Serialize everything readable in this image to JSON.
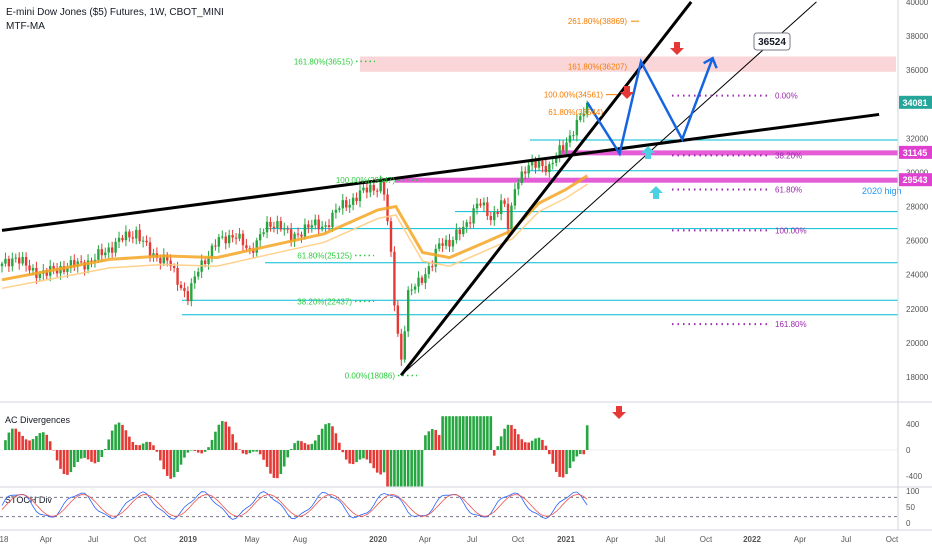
{
  "header": {
    "title": "E-mini Dow Jones ($5) Futures, 1W, CBOT_MINI",
    "indicator": "MTF-MA"
  },
  "panes": {
    "ac_title": "AC Divergences",
    "stoch_title": "STOCH Div"
  },
  "colors": {
    "up": "#26a641",
    "down": "#e53935",
    "ma_orange": "#f5a623",
    "trend_black": "#000000",
    "forecast_blue": "#1565e0",
    "fib_green": "#2ecc40",
    "fib_orange": "#f57c00",
    "fib_purple": "#9c27b0",
    "cyan": "#00bcd4",
    "magenta": "#e040d0",
    "pink_zone": "#f8c8cc"
  },
  "chart_data": [
    {
      "type": "line",
      "title": "E-mini Dow Jones ($5) Futures, 1W, CBOT_MINI",
      "ylim": [
        16000,
        40000
      ],
      "yticks": [
        18000,
        20000,
        22000,
        24000,
        26000,
        28000,
        30000,
        32000,
        34000,
        36000,
        38000,
        40000
      ],
      "x_axis_labels": [
        "18",
        "Apr",
        "Jul",
        "Oct",
        "2019",
        "May",
        "Aug",
        "2020",
        "Apr",
        "Jul",
        "Oct",
        "2021",
        "Apr",
        "Jul",
        "Oct",
        "2022",
        "Apr",
        "Jul",
        "Oct"
      ],
      "price_labels": [
        {
          "value": 34081,
          "style": "last"
        },
        {
          "value": 31145,
          "style": "magenta"
        },
        {
          "value": 29543,
          "style": "magenta"
        }
      ],
      "callout": "36524",
      "text_annotations": [
        "2020 high"
      ],
      "fib_left": [
        {
          "label": "161.80%(36515)",
          "value": 36515
        },
        {
          "label": "100.00%(29547)",
          "value": 29547
        },
        {
          "label": "61.80%(25125)",
          "value": 25125
        },
        {
          "label": "38.20%(22437)",
          "value": 22437
        },
        {
          "label": "0.00%(18086)",
          "value": 18086
        }
      ],
      "fib_extension": [
        {
          "label": "261.80%(38869)",
          "value": 38869
        },
        {
          "label": "161.80%(36207)",
          "value": 36207
        },
        {
          "label": "100.00%(34561)",
          "value": 34561
        },
        {
          "label": "61.80%(33544)",
          "value": 33544
        }
      ],
      "fib_projection": [
        "0.00%",
        "38.20%",
        "61.80%",
        "100.00%",
        "161.80%"
      ],
      "support_levels": [
        31900,
        30100,
        27700,
        26700,
        24700,
        22500,
        21650
      ],
      "weekly_close": [
        {
          "year": 2018.0,
          "close": 24500
        },
        {
          "year": 2018.08,
          "close": 25100
        },
        {
          "year": 2018.16,
          "close": 24200
        },
        {
          "year": 2018.25,
          "close": 24100
        },
        {
          "year": 2018.33,
          "close": 24400
        },
        {
          "year": 2018.42,
          "close": 24600
        },
        {
          "year": 2018.5,
          "close": 24800
        },
        {
          "year": 2018.58,
          "close": 25400
        },
        {
          "year": 2018.67,
          "close": 26100
        },
        {
          "year": 2018.75,
          "close": 26500
        },
        {
          "year": 2018.83,
          "close": 25200
        },
        {
          "year": 2018.92,
          "close": 24900
        },
        {
          "year": 2019.0,
          "close": 23300
        },
        {
          "year": 2019.04,
          "close": 22700
        },
        {
          "year": 2019.1,
          "close": 24400
        },
        {
          "year": 2019.2,
          "close": 25900
        },
        {
          "year": 2019.3,
          "close": 26400
        },
        {
          "year": 2019.38,
          "close": 25300
        },
        {
          "year": 2019.46,
          "close": 26600
        },
        {
          "year": 2019.55,
          "close": 27100
        },
        {
          "year": 2019.62,
          "close": 26000
        },
        {
          "year": 2019.7,
          "close": 26900
        },
        {
          "year": 2019.8,
          "close": 26800
        },
        {
          "year": 2019.88,
          "close": 27900
        },
        {
          "year": 2019.96,
          "close": 28400
        },
        {
          "year": 2020.05,
          "close": 29100
        },
        {
          "year": 2020.13,
          "close": 29200
        },
        {
          "year": 2020.17,
          "close": 25500
        },
        {
          "year": 2020.2,
          "close": 21500
        },
        {
          "year": 2020.23,
          "close": 19000
        },
        {
          "year": 2020.27,
          "close": 22800
        },
        {
          "year": 2020.33,
          "close": 23700
        },
        {
          "year": 2020.4,
          "close": 24500
        },
        {
          "year": 2020.45,
          "close": 26000
        },
        {
          "year": 2020.5,
          "close": 25900
        },
        {
          "year": 2020.58,
          "close": 26700
        },
        {
          "year": 2020.66,
          "close": 28300
        },
        {
          "year": 2020.73,
          "close": 27300
        },
        {
          "year": 2020.8,
          "close": 28400
        },
        {
          "year": 2020.83,
          "close": 26600
        },
        {
          "year": 2020.87,
          "close": 29500
        },
        {
          "year": 2020.93,
          "close": 30200
        },
        {
          "year": 2021.0,
          "close": 30600
        },
        {
          "year": 2021.06,
          "close": 30200
        },
        {
          "year": 2021.12,
          "close": 31400
        },
        {
          "year": 2021.18,
          "close": 32200
        },
        {
          "year": 2021.22,
          "close": 32900
        },
        {
          "year": 2021.27,
          "close": 34081
        }
      ],
      "ma_weekly": [
        {
          "year": 2018.0,
          "value": 23700
        },
        {
          "year": 2018.3,
          "value": 24300
        },
        {
          "year": 2018.6,
          "value": 24900
        },
        {
          "year": 2018.9,
          "value": 25100
        },
        {
          "year": 2019.2,
          "value": 25000
        },
        {
          "year": 2019.5,
          "value": 25700
        },
        {
          "year": 2019.8,
          "value": 26400
        },
        {
          "year": 2020.1,
          "value": 27800
        },
        {
          "year": 2020.2,
          "value": 28000
        },
        {
          "year": 2020.35,
          "value": 25300
        },
        {
          "year": 2020.5,
          "value": 25000
        },
        {
          "year": 2020.7,
          "value": 25900
        },
        {
          "year": 2020.85,
          "value": 26600
        },
        {
          "year": 2021.0,
          "value": 28200
        },
        {
          "year": 2021.15,
          "value": 29000
        },
        {
          "year": 2021.27,
          "value": 29800
        }
      ],
      "trendlines": [
        {
          "from": {
            "year": 2018.0,
            "value": 26600
          },
          "to": {
            "year": 2022.9,
            "value": 33400
          }
        },
        {
          "from": {
            "year": 2020.23,
            "value": 18100
          },
          "to": {
            "year": 2021.85,
            "value": 40000
          }
        },
        {
          "from": {
            "year": 2020.23,
            "value": 18100
          },
          "to": {
            "year": 2022.55,
            "value": 40000
          }
        }
      ],
      "forecast_path": [
        {
          "year": 2021.27,
          "value": 34100
        },
        {
          "year": 2021.45,
          "value": 31100
        },
        {
          "year": 2021.57,
          "value": 36500
        },
        {
          "year": 2021.8,
          "value": 31950
        },
        {
          "year": 2021.97,
          "value": 36700
        }
      ]
    },
    {
      "type": "bar",
      "title": "AC Divergences",
      "ylim": [
        -600,
        600
      ],
      "yticks": [
        400,
        0,
        -400
      ]
    },
    {
      "type": "line",
      "title": "STOCH Div",
      "ylim": [
        0,
        100
      ],
      "yticks": [
        100,
        50,
        0
      ]
    }
  ]
}
